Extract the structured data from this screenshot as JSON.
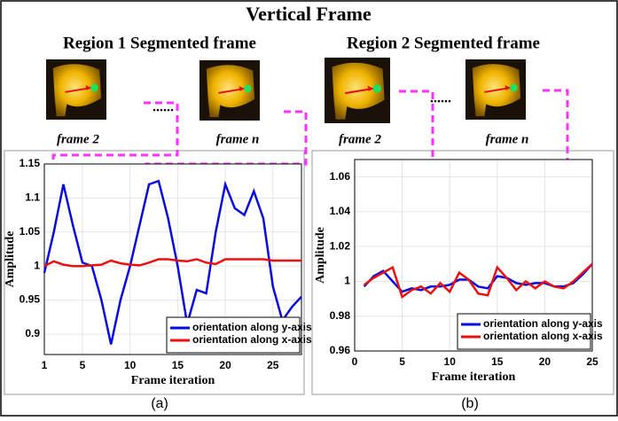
{
  "title": "Vertical Frame",
  "regions": [
    {
      "title": "Region 1 Segmented frame",
      "frames": [
        "frame 2",
        "frame n"
      ]
    },
    {
      "title": "Region 2 Segmented frame",
      "frames": [
        "frame 2",
        "frame n"
      ]
    }
  ],
  "chart_data": [
    {
      "type": "line",
      "caption": "(a)",
      "x_label": "Frame iteration",
      "y_label": "Amplitude",
      "x": [
        1,
        2,
        3,
        4,
        5,
        6,
        7,
        8,
        9,
        10,
        11,
        12,
        13,
        14,
        15,
        16,
        17,
        18,
        19,
        20,
        21,
        22,
        23,
        24,
        25,
        26,
        27,
        28
      ],
      "series": [
        {
          "name": "orientation along y-axis",
          "color": "#0a0ae0",
          "values": [
            0.99,
            1.05,
            1.12,
            1.06,
            1.005,
            1.0,
            0.95,
            0.885,
            0.95,
            1.0,
            1.06,
            1.12,
            1.125,
            1.07,
            1.0,
            0.915,
            0.965,
            0.96,
            1.05,
            1.12,
            1.085,
            1.075,
            1.11,
            1.07,
            0.97,
            0.92,
            0.94,
            0.955
          ]
        },
        {
          "name": "orientation along x-axis",
          "color": "#e81010",
          "values": [
            1.0,
            1.007,
            1.002,
            1.0,
            1.0,
            1.001,
            1.002,
            1.008,
            1.004,
            1.002,
            1.001,
            1.005,
            1.01,
            1.01,
            1.008,
            1.007,
            1.01,
            1.005,
            1.003,
            1.01,
            1.01,
            1.01,
            1.01,
            1.01,
            1.008,
            1.008,
            1.008,
            1.008
          ]
        }
      ],
      "xlim": [
        1,
        28
      ],
      "xticks": [
        1,
        5,
        10,
        15,
        20,
        25
      ],
      "ylim": [
        0.87,
        1.15
      ],
      "yticks": [
        0.9,
        0.95,
        1,
        1.05,
        1.1,
        1.15
      ],
      "grid": true,
      "legend": "lower right"
    },
    {
      "type": "line",
      "caption": "(b)",
      "x_label": "Frame iteration",
      "y_label": "Amplitude",
      "x": [
        1,
        2,
        3,
        4,
        5,
        6,
        7,
        8,
        9,
        10,
        11,
        12,
        13,
        14,
        15,
        16,
        17,
        18,
        19,
        20,
        21,
        22,
        23,
        24,
        25
      ],
      "series": [
        {
          "name": "orientation along y-axis",
          "color": "#0a0ae0",
          "values": [
            0.997,
            1.003,
            1.006,
            1.0,
            0.994,
            0.996,
            0.995,
            0.997,
            0.997,
            0.998,
            1.001,
            1.001,
            0.997,
            0.996,
            1.003,
            1.002,
            0.999,
            0.998,
            0.999,
            0.999,
            0.997,
            0.997,
            0.999,
            1.004,
            1.01
          ]
        },
        {
          "name": "orientation along x-axis",
          "color": "#e81010",
          "values": [
            0.998,
            1.002,
            1.005,
            1.008,
            0.991,
            0.995,
            0.997,
            0.993,
            0.999,
            0.994,
            1.005,
            1.001,
            0.993,
            0.992,
            1.008,
            1.002,
            0.995,
            1.0,
            0.996,
            1.0,
            0.997,
            0.996,
            1.0,
            1.005,
            1.01
          ]
        }
      ],
      "xlim": [
        0,
        25
      ],
      "xticks": [
        0,
        5,
        10,
        15,
        20,
        25
      ],
      "ylim": [
        0.96,
        1.07
      ],
      "yticks": [
        0.96,
        0.98,
        1,
        1.02,
        1.04,
        1.06
      ],
      "grid": true,
      "legend": "lower right"
    }
  ]
}
